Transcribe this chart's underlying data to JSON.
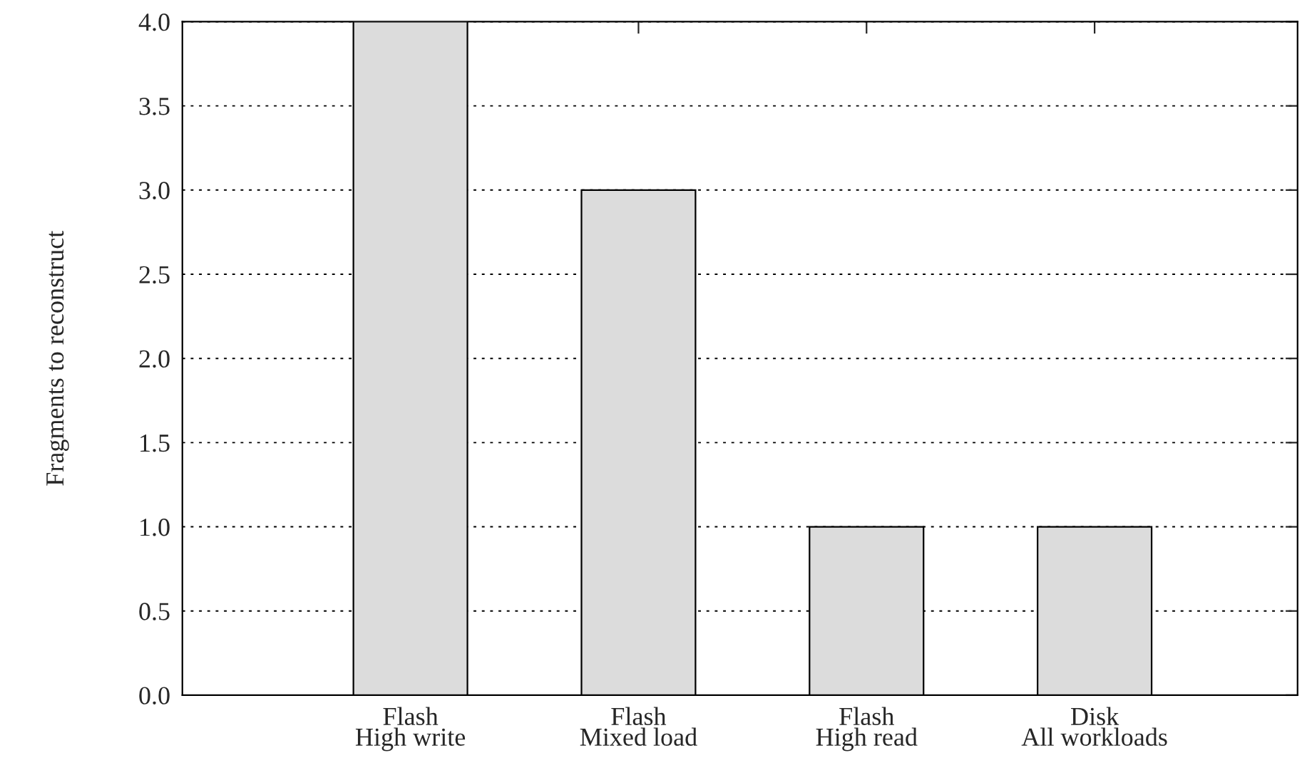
{
  "chart_data": {
    "type": "bar",
    "ylabel": "Fragments to reconstruct",
    "categories": [
      "Flash\nHigh write",
      "Flash\nMixed load",
      "Flash\nHigh read",
      "Disk\nAll workloads"
    ],
    "values": [
      4.0,
      3.0,
      1.0,
      1.0
    ],
    "color": "#dcdcdc",
    "ylim": [
      0.0,
      4.0
    ],
    "yticks": [
      {
        "value": 0,
        "label": "0.0"
      },
      0.5,
      {
        "value": 1,
        "label": "1.0"
      },
      1.5,
      {
        "value": 2,
        "label": "2.0"
      },
      2.5,
      {
        "value": 3,
        "label": "3.0"
      },
      3.5,
      {
        "value": 4,
        "label": "4.0"
      }
    ],
    "grid": "y",
    "legend": false
  }
}
